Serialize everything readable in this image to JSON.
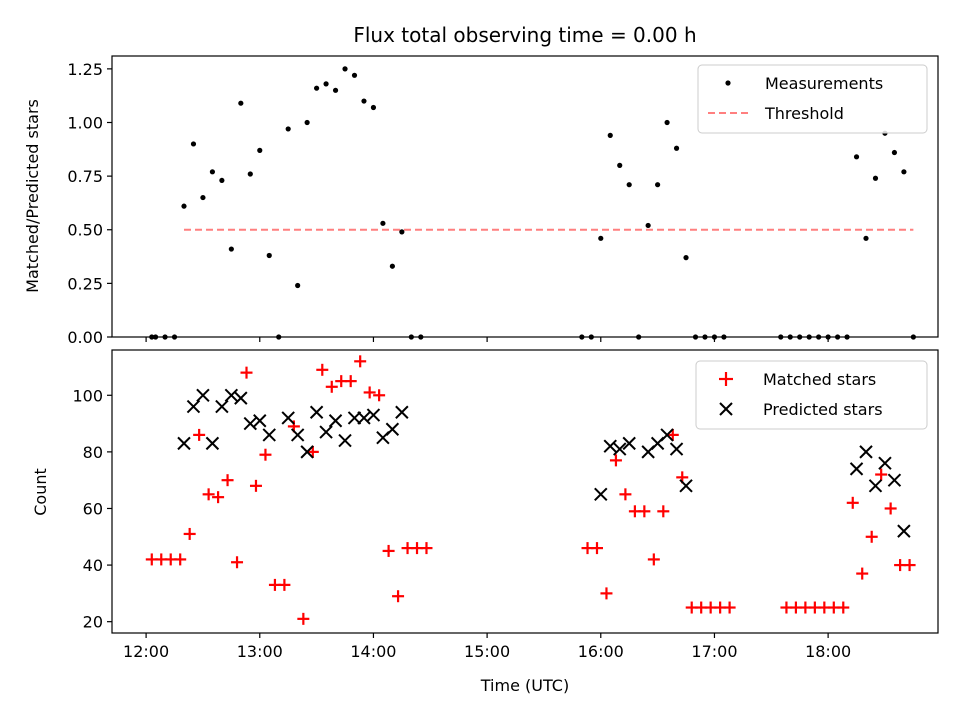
{
  "chart_data": [
    {
      "type": "scatter",
      "title": "Flux total observing time = 0.00 h",
      "xlabel": "",
      "ylabel": "Matched/Predicted stars",
      "xlim": [
        "11:42",
        "18:58"
      ],
      "ylim": [
        0,
        1.31
      ],
      "yticks": [
        "0.00",
        "0.25",
        "0.50",
        "0.75",
        "1.00",
        "1.25"
      ],
      "grid": false,
      "legend_position": "top-right",
      "series": [
        {
          "name": "Measurements",
          "marker": "dot",
          "color": "#000000",
          "points": [
            [
              "12:03",
              0
            ],
            [
              "12:05",
              0
            ],
            [
              "12:10",
              0
            ],
            [
              "12:15",
              0
            ],
            [
              "12:20",
              0.61
            ],
            [
              "12:25",
              0.9
            ],
            [
              "12:30",
              0.65
            ],
            [
              "12:35",
              0.77
            ],
            [
              "12:40",
              0.73
            ],
            [
              "12:45",
              0.41
            ],
            [
              "12:50",
              1.09
            ],
            [
              "12:55",
              0.76
            ],
            [
              "13:00",
              0.87
            ],
            [
              "13:05",
              0.38
            ],
            [
              "13:10",
              0
            ],
            [
              "13:15",
              0.97
            ],
            [
              "13:20",
              0.24
            ],
            [
              "13:25",
              1.0
            ],
            [
              "13:30",
              1.16
            ],
            [
              "13:35",
              1.18
            ],
            [
              "13:40",
              1.15
            ],
            [
              "13:45",
              1.25
            ],
            [
              "13:50",
              1.22
            ],
            [
              "13:55",
              1.1
            ],
            [
              "14:00",
              1.07
            ],
            [
              "14:05",
              0.53
            ],
            [
              "14:10",
              0.33
            ],
            [
              "14:15",
              0.49
            ],
            [
              "14:20",
              0
            ],
            [
              "14:25",
              0
            ],
            [
              "15:50",
              0
            ],
            [
              "15:55",
              0
            ],
            [
              "16:00",
              0.46
            ],
            [
              "16:05",
              0.94
            ],
            [
              "16:10",
              0.8
            ],
            [
              "16:15",
              0.71
            ],
            [
              "16:20",
              0
            ],
            [
              "16:25",
              0.52
            ],
            [
              "16:30",
              0.71
            ],
            [
              "16:35",
              1.0
            ],
            [
              "16:40",
              0.88
            ],
            [
              "16:45",
              0.37
            ],
            [
              "16:50",
              0
            ],
            [
              "16:55",
              0
            ],
            [
              "17:00",
              0
            ],
            [
              "17:05",
              0
            ],
            [
              "17:35",
              0
            ],
            [
              "17:40",
              0
            ],
            [
              "17:45",
              0
            ],
            [
              "17:50",
              0
            ],
            [
              "17:55",
              0
            ],
            [
              "18:00",
              0
            ],
            [
              "18:05",
              0
            ],
            [
              "18:10",
              0
            ],
            [
              "18:15",
              0.84
            ],
            [
              "18:20",
              0.46
            ],
            [
              "18:25",
              0.74
            ],
            [
              "18:30",
              0.95
            ],
            [
              "18:35",
              0.86
            ],
            [
              "18:40",
              0.77
            ],
            [
              "18:45",
              0
            ]
          ]
        },
        {
          "name": "Threshold",
          "marker": "dashed-line",
          "color": "#ff7f7f",
          "points": [
            [
              "12:20",
              0.5
            ],
            [
              "18:45",
              0.5
            ]
          ]
        }
      ]
    },
    {
      "type": "scatter",
      "title": "",
      "xlabel": "Time (UTC)",
      "ylabel": "Count",
      "xlim": [
        "11:42",
        "18:58"
      ],
      "ylim": [
        16,
        116
      ],
      "xticks": [
        "12:00",
        "13:00",
        "14:00",
        "15:00",
        "16:00",
        "17:00",
        "18:00"
      ],
      "yticks": [
        "20",
        "40",
        "60",
        "80",
        "100"
      ],
      "grid": false,
      "legend_position": "top-right",
      "series": [
        {
          "name": "Matched stars",
          "marker": "plus",
          "color": "#ff0000",
          "points": [
            [
              "12:03",
              42
            ],
            [
              "12:08",
              42
            ],
            [
              "12:13",
              42
            ],
            [
              "12:18",
              42
            ],
            [
              "12:23",
              51
            ],
            [
              "12:28",
              86
            ],
            [
              "12:33",
              65
            ],
            [
              "12:38",
              64
            ],
            [
              "12:43",
              70
            ],
            [
              "12:48",
              41
            ],
            [
              "12:53",
              108
            ],
            [
              "12:58",
              68
            ],
            [
              "13:03",
              79
            ],
            [
              "13:08",
              33
            ],
            [
              "13:13",
              33
            ],
            [
              "13:18",
              89
            ],
            [
              "13:23",
              21
            ],
            [
              "13:28",
              80
            ],
            [
              "13:33",
              109
            ],
            [
              "13:38",
              103
            ],
            [
              "13:43",
              105
            ],
            [
              "13:48",
              105
            ],
            [
              "13:53",
              112
            ],
            [
              "13:58",
              101
            ],
            [
              "14:03",
              100
            ],
            [
              "14:08",
              45
            ],
            [
              "14:13",
              29
            ],
            [
              "14:18",
              46
            ],
            [
              "14:23",
              46
            ],
            [
              "14:28",
              46
            ],
            [
              "15:53",
              46
            ],
            [
              "15:58",
              46
            ],
            [
              "16:03",
              30
            ],
            [
              "16:08",
              77
            ],
            [
              "16:13",
              65
            ],
            [
              "16:18",
              59
            ],
            [
              "16:23",
              59
            ],
            [
              "16:28",
              42
            ],
            [
              "16:33",
              59
            ],
            [
              "16:38",
              86
            ],
            [
              "16:43",
              71
            ],
            [
              "16:48",
              25
            ],
            [
              "16:53",
              25
            ],
            [
              "16:58",
              25
            ],
            [
              "17:03",
              25
            ],
            [
              "17:08",
              25
            ],
            [
              "17:38",
              25
            ],
            [
              "17:43",
              25
            ],
            [
              "17:48",
              25
            ],
            [
              "17:53",
              25
            ],
            [
              "17:58",
              25
            ],
            [
              "18:03",
              25
            ],
            [
              "18:08",
              25
            ],
            [
              "18:13",
              62
            ],
            [
              "18:18",
              37
            ],
            [
              "18:23",
              50
            ],
            [
              "18:28",
              72
            ],
            [
              "18:33",
              60
            ],
            [
              "18:38",
              40
            ],
            [
              "18:43",
              40
            ]
          ]
        },
        {
          "name": "Predicted stars",
          "marker": "x",
          "color": "#000000",
          "points": [
            [
              "12:20",
              83
            ],
            [
              "12:25",
              96
            ],
            [
              "12:30",
              100
            ],
            [
              "12:35",
              83
            ],
            [
              "12:40",
              96
            ],
            [
              "12:45",
              100
            ],
            [
              "12:50",
              99
            ],
            [
              "12:55",
              90
            ],
            [
              "13:00",
              91
            ],
            [
              "13:05",
              86
            ],
            [
              "13:15",
              92
            ],
            [
              "13:20",
              86
            ],
            [
              "13:25",
              80
            ],
            [
              "13:30",
              94
            ],
            [
              "13:35",
              87
            ],
            [
              "13:40",
              91
            ],
            [
              "13:45",
              84
            ],
            [
              "13:50",
              92
            ],
            [
              "13:55",
              92
            ],
            [
              "14:00",
              93
            ],
            [
              "14:05",
              85
            ],
            [
              "14:10",
              88
            ],
            [
              "14:15",
              94
            ],
            [
              "16:00",
              65
            ],
            [
              "16:05",
              82
            ],
            [
              "16:10",
              81
            ],
            [
              "16:15",
              83
            ],
            [
              "16:25",
              80
            ],
            [
              "16:30",
              83
            ],
            [
              "16:35",
              86
            ],
            [
              "16:40",
              81
            ],
            [
              "16:45",
              68
            ],
            [
              "18:15",
              74
            ],
            [
              "18:20",
              80
            ],
            [
              "18:25",
              68
            ],
            [
              "18:30",
              76
            ],
            [
              "18:35",
              70
            ],
            [
              "18:40",
              52
            ]
          ]
        }
      ]
    }
  ]
}
